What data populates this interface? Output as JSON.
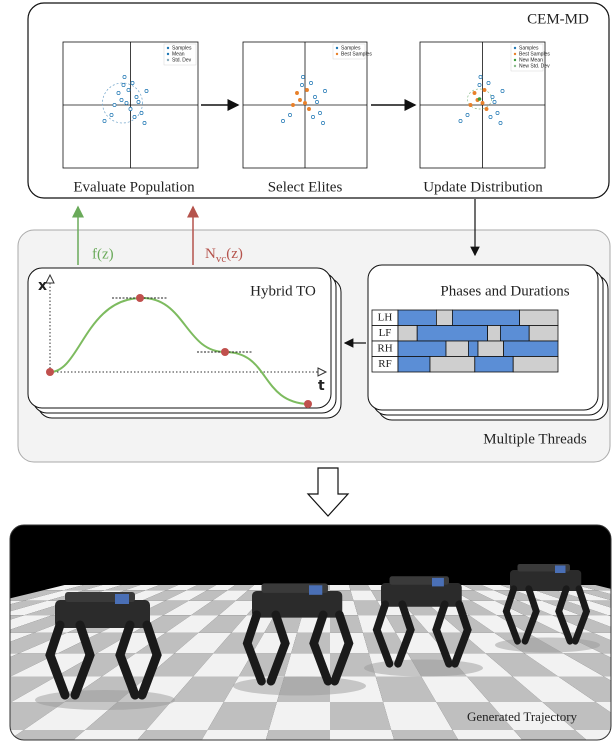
{
  "cem_md": {
    "title": "CEM-MD",
    "panels": [
      {
        "label": "Evaluate Population",
        "legend": [
          "Samples",
          "Mean",
          "Std. Dev"
        ]
      },
      {
        "label": "Select Elites",
        "legend": [
          "Samples",
          "Best Samples"
        ]
      },
      {
        "label": "Update Distribution",
        "legend": [
          "Samples",
          "Best Samples",
          "New Mean",
          "New Std. Dev"
        ]
      }
    ]
  },
  "signals": {
    "cost": "f(z)",
    "constraint": {
      "base": "N",
      "sub": "vc",
      "arg": "(z)"
    }
  },
  "threads": {
    "label": "Multiple Threads",
    "hybrid_to": {
      "title": "Hybrid TO",
      "x_axis": "x",
      "t_axis": "t"
    },
    "phases": {
      "title": "Phases and Durations",
      "legs": [
        "LH",
        "LF",
        "RH",
        "RF"
      ]
    }
  },
  "render": {
    "caption": "Generated Trajectory"
  }
}
